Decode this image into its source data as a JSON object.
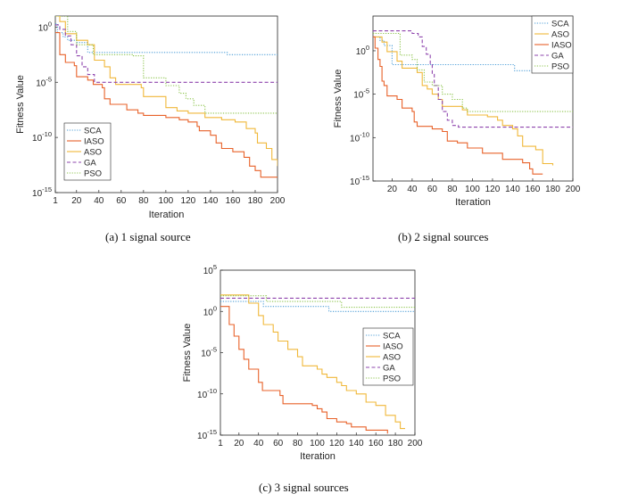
{
  "colors": {
    "SCA": "#4f9fd8",
    "IASO": "#e8622a",
    "ASO": "#f0b83a",
    "GA": "#8e44ad",
    "PSO": "#8cc44b"
  },
  "chart_data": [
    {
      "type": "line",
      "caption": "(a)  1 signal source",
      "xlabel": "Iteration",
      "ylabel": "Fitness Value",
      "xlim": [
        1,
        200
      ],
      "ylim_exp": [
        -15,
        1
      ],
      "xticks": [
        1,
        20,
        40,
        60,
        80,
        100,
        120,
        140,
        160,
        180,
        200
      ],
      "yticks": [
        {
          "e": 0,
          "label": "10",
          "sup": "0"
        },
        {
          "e": -5,
          "label": "10",
          "sup": "-5"
        },
        {
          "e": -10,
          "label": "10",
          "sup": "-10"
        },
        {
          "e": -15,
          "label": "10",
          "sup": "-15"
        }
      ],
      "legend_position": "bottom-left",
      "legend": [
        "SCA",
        "IASO",
        "ASO",
        "GA",
        "PSO"
      ],
      "series": [
        {
          "name": "SCA",
          "dash": "dotted",
          "points": [
            [
              1,
              0.3
            ],
            [
              3,
              -0.5
            ],
            [
              8,
              -0.9
            ],
            [
              12,
              -1.2
            ],
            [
              20,
              -1.4
            ],
            [
              30,
              -2.3
            ],
            [
              120,
              -2.3
            ],
            [
              155,
              -2.5
            ],
            [
              200,
              -2.5
            ]
          ]
        },
        {
          "name": "IASO",
          "dash": "solid",
          "points": [
            [
              1,
              -0.5
            ],
            [
              5,
              -2.5
            ],
            [
              10,
              -3.2
            ],
            [
              18,
              -3.5
            ],
            [
              20,
              -4.5
            ],
            [
              30,
              -4.8
            ],
            [
              35,
              -5.2
            ],
            [
              43,
              -5.5
            ],
            [
              45,
              -6.5
            ],
            [
              50,
              -7.0
            ],
            [
              65,
              -7.5
            ],
            [
              75,
              -7.8
            ],
            [
              80,
              -8.0
            ],
            [
              100,
              -8.2
            ],
            [
              112,
              -8.4
            ],
            [
              120,
              -8.6
            ],
            [
              128,
              -9.0
            ],
            [
              130,
              -9.4
            ],
            [
              140,
              -9.8
            ],
            [
              145,
              -10.5
            ],
            [
              150,
              -11.0
            ],
            [
              160,
              -11.3
            ],
            [
              170,
              -11.8
            ],
            [
              175,
              -12.6
            ],
            [
              180,
              -13.0
            ],
            [
              185,
              -13.6
            ],
            [
              200,
              -13.6
            ]
          ]
        },
        {
          "name": "ASO",
          "dash": "solid",
          "points": [
            [
              1,
              1.0
            ],
            [
              5,
              0.5
            ],
            [
              10,
              -0.6
            ],
            [
              20,
              -1.2
            ],
            [
              30,
              -1.6
            ],
            [
              36,
              -3.0
            ],
            [
              45,
              -3.6
            ],
            [
              50,
              -4.6
            ],
            [
              55,
              -5.2
            ],
            [
              78,
              -5.5
            ],
            [
              80,
              -6.3
            ],
            [
              100,
              -7.3
            ],
            [
              110,
              -7.6
            ],
            [
              120,
              -7.8
            ],
            [
              135,
              -8.2
            ],
            [
              150,
              -8.4
            ],
            [
              162,
              -8.6
            ],
            [
              172,
              -9.2
            ],
            [
              180,
              -9.6
            ],
            [
              182,
              -10.5
            ],
            [
              190,
              -11.0
            ],
            [
              195,
              -12.0
            ],
            [
              200,
              -12.6
            ]
          ]
        },
        {
          "name": "GA",
          "dash": "dashed",
          "points": [
            [
              1,
              0.2
            ],
            [
              5,
              -0.2
            ],
            [
              10,
              -0.8
            ],
            [
              15,
              -1.6
            ],
            [
              20,
              -2.6
            ],
            [
              25,
              -3.6
            ],
            [
              30,
              -4.3
            ],
            [
              36,
              -5.0
            ],
            [
              200,
              -5.0
            ]
          ]
        },
        {
          "name": "PSO",
          "dash": "dotted",
          "points": [
            [
              1,
              1.0
            ],
            [
              8,
              1.0
            ],
            [
              12,
              -0.4
            ],
            [
              20,
              -1.6
            ],
            [
              35,
              -2.5
            ],
            [
              55,
              -2.5
            ],
            [
              70,
              -2.6
            ],
            [
              80,
              -4.6
            ],
            [
              100,
              -5.3
            ],
            [
              112,
              -6.0
            ],
            [
              118,
              -6.5
            ],
            [
              125,
              -7.1
            ],
            [
              135,
              -7.8
            ],
            [
              200,
              -7.8
            ]
          ]
        }
      ]
    },
    {
      "type": "line",
      "caption": "(b)  2 signal sources",
      "xlabel": "Iteration",
      "ylabel": "Fitness Value",
      "xlim": [
        1,
        200
      ],
      "ylim_exp": [
        -15,
        4
      ],
      "xticks": [
        20,
        40,
        60,
        80,
        100,
        120,
        140,
        160,
        180,
        200
      ],
      "yticks": [
        {
          "e": 0,
          "label": "10",
          "sup": "0"
        },
        {
          "e": -5,
          "label": "10",
          "sup": "-5"
        },
        {
          "e": -10,
          "label": "10",
          "sup": "-10"
        },
        {
          "e": -15,
          "label": "10",
          "sup": "-15"
        }
      ],
      "legend_position": "top-right",
      "legend": [
        "SCA",
        "ASO",
        "IASO",
        "GA",
        "PSO"
      ],
      "series": [
        {
          "name": "SCA",
          "dash": "dotted",
          "points": [
            [
              1,
              1.6
            ],
            [
              8,
              1.2
            ],
            [
              12,
              0.6
            ],
            [
              20,
              -1.6
            ],
            [
              100,
              -1.6
            ],
            [
              140,
              -1.6
            ],
            [
              142,
              -2.3
            ],
            [
              200,
              -2.3
            ]
          ]
        },
        {
          "name": "ASO",
          "dash": "solid",
          "points": [
            [
              1,
              1.6
            ],
            [
              10,
              1.0
            ],
            [
              15,
              -0.1
            ],
            [
              25,
              -1.2
            ],
            [
              30,
              -2.0
            ],
            [
              45,
              -2.5
            ],
            [
              50,
              -4.0
            ],
            [
              55,
              -4.4
            ],
            [
              60,
              -5.0
            ],
            [
              66,
              -5.6
            ],
            [
              70,
              -6.4
            ],
            [
              90,
              -6.8
            ],
            [
              95,
              -7.4
            ],
            [
              115,
              -7.6
            ],
            [
              125,
              -8.0
            ],
            [
              130,
              -8.6
            ],
            [
              140,
              -9.0
            ],
            [
              145,
              -9.8
            ],
            [
              150,
              -11.0
            ],
            [
              163,
              -11.4
            ],
            [
              170,
              -13.0
            ],
            [
              180,
              -13.2
            ]
          ]
        },
        {
          "name": "IASO",
          "dash": "solid",
          "points": [
            [
              1,
              1.6
            ],
            [
              3,
              0.3
            ],
            [
              6,
              -1.0
            ],
            [
              8,
              -1.8
            ],
            [
              10,
              -3.5
            ],
            [
              12,
              -4.0
            ],
            [
              15,
              -5.2
            ],
            [
              25,
              -5.6
            ],
            [
              30,
              -6.6
            ],
            [
              40,
              -7.0
            ],
            [
              42,
              -8.2
            ],
            [
              45,
              -8.7
            ],
            [
              60,
              -9.0
            ],
            [
              70,
              -9.3
            ],
            [
              75,
              -10.4
            ],
            [
              85,
              -10.6
            ],
            [
              95,
              -11.2
            ],
            [
              110,
              -11.8
            ],
            [
              130,
              -12.5
            ],
            [
              150,
              -12.9
            ],
            [
              157,
              -13.6
            ],
            [
              160,
              -14.2
            ],
            [
              170,
              -14.2
            ]
          ]
        },
        {
          "name": "GA",
          "dash": "dashed",
          "points": [
            [
              1,
              2.3
            ],
            [
              30,
              2.3
            ],
            [
              40,
              2.0
            ],
            [
              46,
              1.6
            ],
            [
              50,
              0.5
            ],
            [
              54,
              -0.4
            ],
            [
              58,
              -1.6
            ],
            [
              60,
              -2.6
            ],
            [
              62,
              -4.0
            ],
            [
              66,
              -5.6
            ],
            [
              70,
              -7.0
            ],
            [
              75,
              -8.0
            ],
            [
              80,
              -8.6
            ],
            [
              86,
              -8.8
            ],
            [
              200,
              -8.8
            ]
          ]
        },
        {
          "name": "PSO",
          "dash": "dotted",
          "points": [
            [
              1,
              2.0
            ],
            [
              25,
              2.0
            ],
            [
              28,
              -0.5
            ],
            [
              40,
              -1.0
            ],
            [
              45,
              -2.2
            ],
            [
              52,
              -3.6
            ],
            [
              60,
              -4.0
            ],
            [
              70,
              -5.0
            ],
            [
              80,
              -5.6
            ],
            [
              90,
              -6.6
            ],
            [
              95,
              -7.0
            ],
            [
              200,
              -7.0
            ]
          ]
        }
      ]
    },
    {
      "type": "line",
      "caption": "(c)  3 signal sources",
      "xlabel": "Iteration",
      "ylabel": "Fitness Value",
      "xlim": [
        1,
        200
      ],
      "ylim_exp": [
        -15,
        5
      ],
      "xticks": [
        1,
        20,
        40,
        60,
        80,
        100,
        120,
        140,
        160,
        180,
        200
      ],
      "yticks": [
        {
          "e": 5,
          "label": "10",
          "sup": "5"
        },
        {
          "e": 0,
          "label": "10",
          "sup": "0"
        },
        {
          "e": -5,
          "label": "10",
          "sup": "-5"
        },
        {
          "e": -10,
          "label": "10",
          "sup": "-10"
        },
        {
          "e": -15,
          "label": "10",
          "sup": "-15"
        }
      ],
      "legend_position": "center-right",
      "legend": [
        "SCA",
        "IASO",
        "ASO",
        "GA",
        "PSO"
      ],
      "series": [
        {
          "name": "SCA",
          "dash": "dotted",
          "points": [
            [
              1,
              1.2
            ],
            [
              40,
              1.2
            ],
            [
              45,
              0.6
            ],
            [
              110,
              0.6
            ],
            [
              112,
              0.0
            ],
            [
              200,
              0.0
            ]
          ]
        },
        {
          "name": "IASO",
          "dash": "solid",
          "points": [
            [
              1,
              0.6
            ],
            [
              10,
              -1.6
            ],
            [
              15,
              -3.0
            ],
            [
              20,
              -4.6
            ],
            [
              25,
              -5.8
            ],
            [
              30,
              -7.0
            ],
            [
              40,
              -8.6
            ],
            [
              44,
              -9.6
            ],
            [
              55,
              -9.6
            ],
            [
              62,
              -10.2
            ],
            [
              65,
              -11.2
            ],
            [
              75,
              -11.2
            ],
            [
              95,
              -11.4
            ],
            [
              100,
              -11.8
            ],
            [
              105,
              -12.2
            ],
            [
              110,
              -13.0
            ],
            [
              120,
              -13.4
            ],
            [
              130,
              -13.6
            ],
            [
              135,
              -14.0
            ],
            [
              150,
              -14.4
            ],
            [
              165,
              -14.4
            ],
            [
              172,
              -14.8
            ]
          ]
        },
        {
          "name": "ASO",
          "dash": "solid",
          "points": [
            [
              1,
              2.0
            ],
            [
              25,
              2.0
            ],
            [
              30,
              1.0
            ],
            [
              40,
              -0.5
            ],
            [
              45,
              -1.6
            ],
            [
              55,
              -2.5
            ],
            [
              60,
              -3.6
            ],
            [
              70,
              -4.6
            ],
            [
              80,
              -5.5
            ],
            [
              85,
              -6.6
            ],
            [
              100,
              -7.0
            ],
            [
              105,
              -7.6
            ],
            [
              110,
              -8.0
            ],
            [
              120,
              -8.6
            ],
            [
              125,
              -9.0
            ],
            [
              130,
              -9.6
            ],
            [
              140,
              -10.0
            ],
            [
              150,
              -11.0
            ],
            [
              160,
              -11.4
            ],
            [
              170,
              -12.6
            ],
            [
              180,
              -13.4
            ],
            [
              185,
              -14.2
            ],
            [
              190,
              -14.2
            ]
          ]
        },
        {
          "name": "GA",
          "dash": "dashed",
          "points": [
            [
              1,
              1.6
            ],
            [
              200,
              1.6
            ]
          ]
        },
        {
          "name": "PSO",
          "dash": "dotted",
          "points": [
            [
              1,
              1.9
            ],
            [
              45,
              1.9
            ],
            [
              48,
              1.2
            ],
            [
              120,
              1.2
            ],
            [
              125,
              0.5
            ],
            [
              200,
              0.5
            ]
          ]
        }
      ]
    }
  ]
}
